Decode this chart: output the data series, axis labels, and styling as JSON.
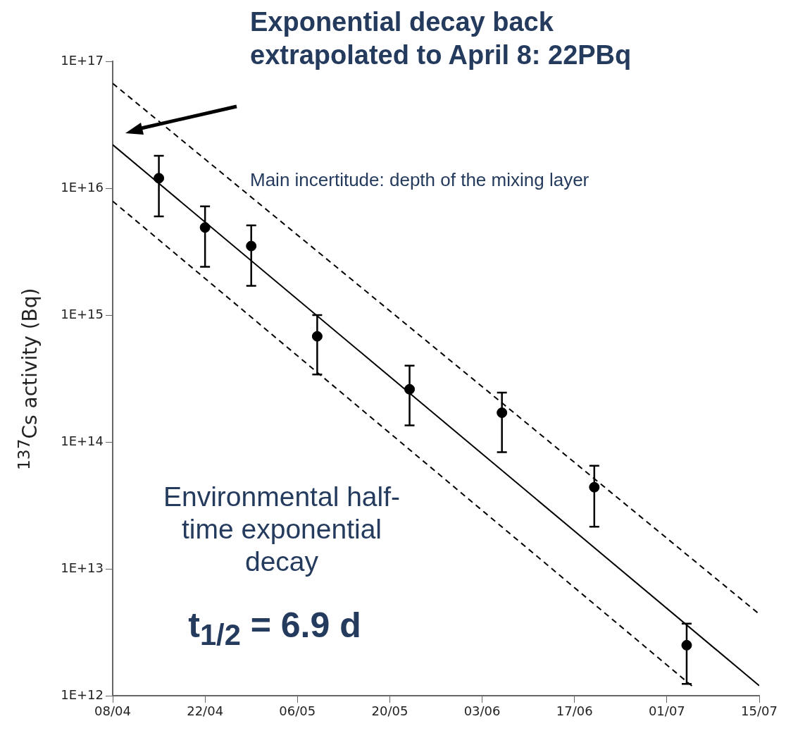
{
  "chart_data": {
    "type": "scatter",
    "ylabel": "$^{137}$Cs activity (Bq)",
    "xlim": [
      "--04-08",
      "--07-15"
    ],
    "xticks": [
      {
        "value": "--04-08",
        "label": "08/04"
      },
      {
        "value": "--04-22",
        "label": "22/04"
      },
      {
        "value": "--05-06",
        "label": "06/05"
      },
      {
        "value": "--05-20",
        "label": "20/05"
      },
      {
        "value": "--06-03",
        "label": "03/06"
      },
      {
        "value": "--06-17",
        "label": "17/06"
      },
      {
        "value": "--07-01",
        "label": "01/07"
      },
      {
        "value": "--07-15",
        "label": "15/07"
      }
    ],
    "ylim": [
      1000000000000.0,
      1e+17
    ],
    "yticks": [
      {
        "value": 1000000000000.0,
        "label": "1E+12"
      },
      {
        "value": 10000000000000.0,
        "label": "1E+13"
      },
      {
        "value": 100000000000000.0,
        "label": "1E+14"
      },
      {
        "value": 1000000000000000.0,
        "label": "1E+15"
      },
      {
        "value": 1e+16,
        "label": "1E+16"
      },
      {
        "value": 1e+17,
        "label": "1E+17"
      }
    ],
    "log": "y",
    "series": [
      {
        "color": "#000000",
        "marker": "circle",
        "x": [
          "--04-15",
          "--04-22",
          "--04-29",
          "--05-09",
          "--05-23",
          "--06-06",
          "--06-20",
          "--07-04"
        ],
        "values": [
          1.2e+16,
          4900000000000000.0,
          3500000000000000.0,
          680000000000000.0,
          260000000000000.0,
          170000000000000.0,
          44000000000000.0,
          2500000000000.0
        ],
        "errors": [
          [
            6000000000000000.0,
            1.8e+16
          ],
          [
            2400000000000000.0,
            7200000000000000.0
          ],
          [
            1700000000000000.0,
            5100000000000000.0
          ],
          [
            340000000000000.0,
            1000000000000000.0
          ],
          [
            135000000000000.0,
            400000000000000.0
          ],
          [
            83000000000000.0,
            245000000000000.0
          ],
          [
            21500000000000.0,
            65000000000000.0
          ],
          [
            1240000000000.0,
            3700000000000.0
          ]
        ]
      },
      {
        "type": "line",
        "color": "#000000",
        "line_style": "solid",
        "x": [
          "--04-08",
          "--07-15"
        ],
        "values": [
          2.2e+16,
          1200000000000.0
        ]
      },
      {
        "type": "line",
        "color": "#000000",
        "line_style": "dashed",
        "x": [
          "--04-08",
          "--07-15"
        ],
        "values": [
          6.7e+16,
          4400000000000.0
        ]
      },
      {
        "type": "line",
        "color": "#000000",
        "line_style": "dashed",
        "x": [
          "--04-08",
          "--07-05"
        ],
        "values": [
          7900000000000000.0,
          1170000000000.0
        ]
      }
    ],
    "annotations": [
      "Exponential decay back extrapolated to April 8: 22PBq",
      "Main incertitude: depth of the mixing layer",
      "Environmental half-time exponential decay",
      "t$_{1/2}$ = 6.9 d"
    ]
  }
}
